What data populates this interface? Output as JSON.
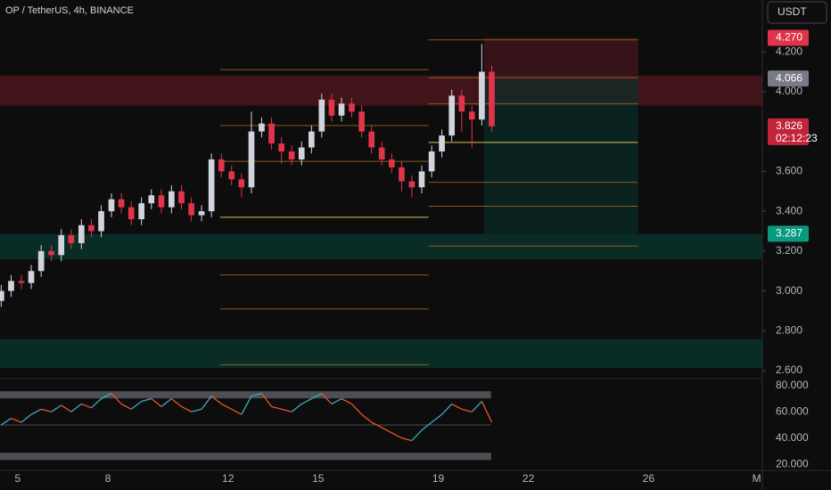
{
  "chart_data": {
    "type": "candlestick",
    "title": "OP / TetherUS, 4h, BINANCE",
    "currency": "USDT",
    "countdown": "02:12:23",
    "up_color": "#d1d4dc",
    "down_color": "#e0344a",
    "x": [
      4.45,
      4.78,
      5.12,
      5.45,
      5.78,
      6.12,
      6.45,
      6.78,
      7.12,
      7.45,
      7.78,
      8.12,
      8.45,
      8.78,
      9.12,
      9.45,
      9.78,
      10.12,
      10.45,
      10.78,
      11.12,
      11.45,
      11.78,
      12.12,
      12.45,
      12.78,
      13.12,
      13.45,
      13.78,
      14.12,
      14.45,
      14.78,
      15.12,
      15.45,
      15.78,
      16.12,
      16.45,
      16.78,
      17.12,
      17.45,
      17.78,
      18.12,
      18.45,
      18.78,
      19.12,
      19.45,
      19.78,
      20.12,
      20.45,
      20.78
    ],
    "open": [
      2.95,
      3.0,
      3.05,
      3.04,
      3.1,
      3.2,
      3.18,
      3.28,
      3.24,
      3.33,
      3.3,
      3.4,
      3.46,
      3.42,
      3.36,
      3.44,
      3.48,
      3.42,
      3.5,
      3.44,
      3.38,
      3.4,
      3.66,
      3.6,
      3.56,
      3.52,
      3.8,
      3.84,
      3.74,
      3.7,
      3.66,
      3.72,
      3.8,
      3.96,
      3.88,
      3.94,
      3.9,
      3.8,
      3.72,
      3.66,
      3.62,
      3.55,
      3.52,
      3.6,
      3.7,
      3.78,
      3.98,
      3.9,
      3.86,
      4.1
    ],
    "high": [
      3.03,
      3.08,
      3.08,
      3.13,
      3.23,
      3.23,
      3.31,
      3.31,
      3.36,
      3.36,
      3.43,
      3.49,
      3.49,
      3.45,
      3.47,
      3.51,
      3.51,
      3.53,
      3.53,
      3.47,
      3.43,
      3.69,
      3.69,
      3.63,
      3.59,
      3.9,
      3.87,
      3.87,
      3.77,
      3.73,
      3.75,
      3.83,
      3.99,
      3.99,
      3.97,
      3.97,
      3.93,
      3.83,
      3.75,
      3.69,
      3.65,
      3.58,
      3.63,
      3.73,
      3.81,
      4.01,
      4.01,
      3.93,
      4.24,
      4.13
    ],
    "low": [
      2.92,
      2.97,
      3.01,
      3.01,
      3.07,
      3.15,
      3.15,
      3.21,
      3.21,
      3.27,
      3.27,
      3.37,
      3.39,
      3.33,
      3.33,
      3.41,
      3.39,
      3.39,
      3.41,
      3.35,
      3.35,
      3.37,
      3.57,
      3.53,
      3.47,
      3.49,
      3.77,
      3.71,
      3.64,
      3.63,
      3.63,
      3.69,
      3.77,
      3.85,
      3.85,
      3.87,
      3.77,
      3.69,
      3.63,
      3.59,
      3.5,
      3.47,
      3.49,
      3.57,
      3.67,
      3.75,
      3.8,
      3.72,
      3.83,
      3.8
    ],
    "close": [
      3.0,
      3.05,
      3.04,
      3.1,
      3.2,
      3.18,
      3.28,
      3.24,
      3.33,
      3.3,
      3.4,
      3.46,
      3.42,
      3.36,
      3.44,
      3.48,
      3.42,
      3.5,
      3.44,
      3.38,
      3.4,
      3.66,
      3.6,
      3.56,
      3.52,
      3.8,
      3.84,
      3.74,
      3.7,
      3.66,
      3.72,
      3.8,
      3.96,
      3.88,
      3.94,
      3.9,
      3.8,
      3.72,
      3.66,
      3.62,
      3.55,
      3.52,
      3.6,
      3.7,
      3.78,
      3.98,
      3.9,
      3.86,
      4.1,
      3.826
    ],
    "xlim": [
      4.41,
      29.7
    ],
    "xticks": [
      5,
      8,
      12,
      15,
      19,
      22,
      26,
      {
        "value": 29.6,
        "label": "M"
      }
    ],
    "ylim": [
      2.56,
      4.46
    ],
    "yticks": [
      {
        "value": 2.6,
        "label": "2.600"
      },
      {
        "value": 2.8,
        "label": "2.800"
      },
      {
        "value": 3.0,
        "label": "3.000"
      },
      {
        "value": 3.2,
        "label": "3.200"
      },
      {
        "value": 3.4,
        "label": "3.400"
      },
      {
        "value": 3.6,
        "label": "3.600"
      },
      {
        "value": 4.0,
        "label": "4.000"
      },
      {
        "value": 4.2,
        "label": "4.200"
      }
    ],
    "zones": [
      {
        "low": 3.93,
        "high": 4.08,
        "color": "#4a161b"
      },
      {
        "low": 3.16,
        "high": 3.286,
        "color": "#0b332d"
      },
      {
        "low": 2.614,
        "high": 2.758,
        "color": "#0b332d"
      }
    ],
    "position": {
      "x_from": 20.52,
      "x_to": 25.65,
      "entry": 4.066,
      "stop": {
        "value": 4.27,
        "label": "4.270"
      },
      "target": 3.287
    },
    "fib": [
      {
        "x_from": 11.74,
        "x_to": 18.68,
        "levels": [
          4.11,
          3.83,
          3.65,
          3.37,
          3.08,
          2.91,
          2.63
        ],
        "key": 3
      },
      {
        "x_from": 18.68,
        "x_to": 25.65,
        "levels": [
          4.26,
          4.07,
          3.94,
          3.745,
          3.545,
          3.425,
          3.225
        ],
        "key": 3
      }
    ],
    "rsi": {
      "ylim": [
        15.3,
        85.3
      ],
      "yticks": [
        {
          "value": 20,
          "label": "20.000"
        },
        {
          "value": 40,
          "label": "40.000"
        },
        {
          "value": 60,
          "label": "60.000"
        },
        {
          "value": 80,
          "label": "80.000"
        }
      ],
      "bands": [
        73,
        26
      ],
      "mid": 50,
      "up_color": "#3fa9c9",
      "down_color": "#f0502f",
      "values": [
        50,
        55,
        52,
        58,
        62,
        60,
        65,
        60,
        66,
        63,
        70,
        74,
        66,
        62,
        68,
        70,
        64,
        70,
        64,
        60,
        62,
        72,
        66,
        62,
        58,
        72,
        74,
        64,
        62,
        60,
        66,
        70,
        74,
        66,
        70,
        66,
        58,
        52,
        48,
        44,
        40,
        38,
        46,
        52,
        58,
        66,
        62,
        60,
        68,
        52
      ]
    }
  }
}
